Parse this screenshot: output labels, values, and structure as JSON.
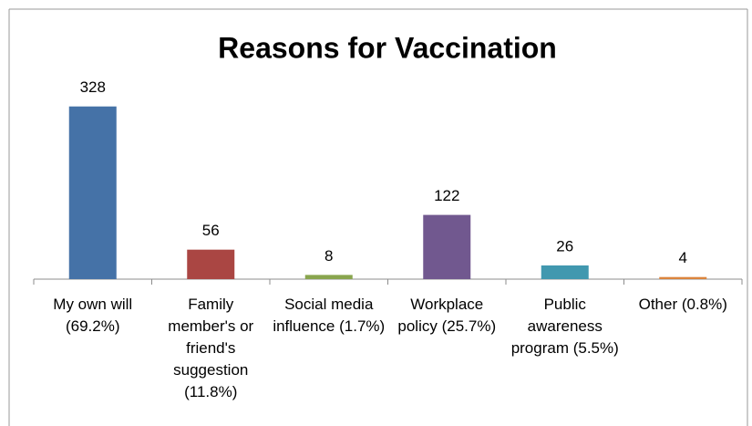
{
  "chart_data": {
    "type": "bar",
    "title": "Reasons for Vaccination",
    "categories": [
      "My own will (69.2%)",
      "Family member's or friend's suggestion (11.8%)",
      "Social media influence (1.7%)",
      "Workplace policy (25.7%)",
      "Public awareness program (5.5%)",
      "Other (0.8%)"
    ],
    "values": [
      328,
      56,
      8,
      122,
      26,
      4
    ],
    "colors": [
      "#4572a7",
      "#aa4643",
      "#89a54e",
      "#71588f",
      "#4198af",
      "#db843d"
    ],
    "ylim": [
      0,
      350
    ]
  }
}
